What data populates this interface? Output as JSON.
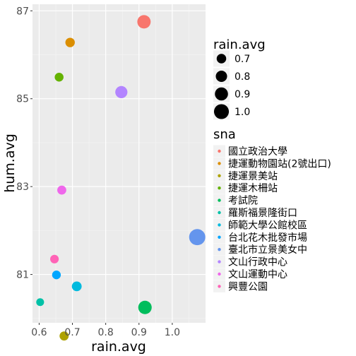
{
  "chart_data": {
    "type": "scatter",
    "xlabel": "rain.avg",
    "ylabel": "hum.avg",
    "xlim": [
      0.58,
      1.1
    ],
    "ylim": [
      79.9,
      87.15
    ],
    "x_ticks": [
      "0.6",
      "0.7",
      "0.8",
      "0.9",
      "1.0"
    ],
    "y_ticks": [
      "81",
      "83",
      "85",
      "87"
    ],
    "grid": true,
    "size_legend": {
      "title": "rain.avg",
      "entries": [
        "0.7",
        "0.8",
        "0.9",
        "1.0"
      ]
    },
    "color_legend": {
      "title": "sna",
      "placement": "right"
    },
    "series": [
      {
        "name": "國立政治大學",
        "color": "#F8766D",
        "x": 0.915,
        "y": 86.75,
        "size": 0.915
      },
      {
        "name": "捷運動物園站(2號出口)",
        "color": "#DB8E00",
        "x": 0.693,
        "y": 86.28,
        "size": 0.693
      },
      {
        "name": "捷運景美站",
        "color": "#AEA200",
        "x": 0.675,
        "y": 79.6,
        "size": 0.675
      },
      {
        "name": "捷運木柵站",
        "color": "#64B200",
        "x": 0.66,
        "y": 85.49,
        "size": 0.66
      },
      {
        "name": "考試院",
        "color": "#00BD5C",
        "x": 0.918,
        "y": 80.25,
        "size": 0.918
      },
      {
        "name": "羅斯福景隆街口",
        "color": "#00C1A7",
        "x": 0.603,
        "y": 80.37,
        "size": 0.603
      },
      {
        "name": "師範大學公館校區",
        "color": "#00BADE",
        "x": 0.713,
        "y": 80.73,
        "size": 0.713
      },
      {
        "name": "台北花木批發市場",
        "color": "#00A6FF",
        "x": 0.652,
        "y": 80.99,
        "size": 0.652
      },
      {
        "name": "臺北市立景美女中",
        "color": "#6495ED",
        "x": 1.075,
        "y": 81.85,
        "size": 1.075
      },
      {
        "name": "文山行政中心",
        "color": "#B385FF",
        "x": 0.847,
        "y": 85.15,
        "size": 0.847
      },
      {
        "name": "文山運動中心",
        "color": "#EF67EB",
        "x": 0.668,
        "y": 82.92,
        "size": 0.668
      },
      {
        "name": "興豐公園",
        "color": "#FF63B6",
        "x": 0.646,
        "y": 81.35,
        "size": 0.646
      }
    ]
  }
}
